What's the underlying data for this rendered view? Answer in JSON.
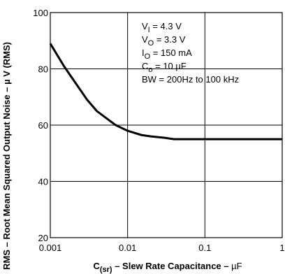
{
  "chart_data": {
    "type": "line",
    "xscale": "log",
    "xlim": [
      0.001,
      1
    ],
    "ylim": [
      20,
      100
    ],
    "grid": true,
    "x_ticks": [
      0.001,
      0.01,
      0.1,
      1
    ],
    "x_tick_labels": [
      "0.001",
      "0.01",
      "0.1",
      "1"
    ],
    "y_ticks": [
      20,
      40,
      60,
      80,
      100
    ],
    "y_tick_labels": [
      "20",
      "40",
      "60",
      "80",
      "100"
    ],
    "xlabel": {
      "main": "C",
      "sub": "(sr)",
      "rest": " – Slew Rate Capacitance – ",
      "unit": "µF"
    },
    "ylabel": {
      "main": "RMS – Root Mean Squared Output Noise – ",
      "unit": "µ V (RMS)"
    },
    "annotations": [
      {
        "main": "V",
        "sub": "I",
        "rest": " = 4.3 V"
      },
      {
        "main": "V",
        "sub": "O",
        "rest": " = 3.3 V"
      },
      {
        "main": "I",
        "sub": "O",
        "rest": " = 150 mA"
      },
      {
        "main": "C",
        "sub": "o",
        "rest": " = 10 µF"
      },
      {
        "main": "BW = 200Hz to 100 kHz",
        "sub": "",
        "rest": ""
      }
    ],
    "series": [
      {
        "x": [
          0.001,
          0.0015,
          0.002,
          0.003,
          0.004,
          0.005,
          0.007,
          0.01,
          0.015,
          0.02,
          0.03,
          0.04,
          0.06,
          0.1,
          0.2,
          0.5,
          1
        ],
        "y": [
          89,
          81,
          76,
          69,
          65,
          63,
          60,
          58,
          56.5,
          56,
          55.5,
          55,
          55,
          55,
          55,
          55,
          55
        ]
      }
    ]
  }
}
